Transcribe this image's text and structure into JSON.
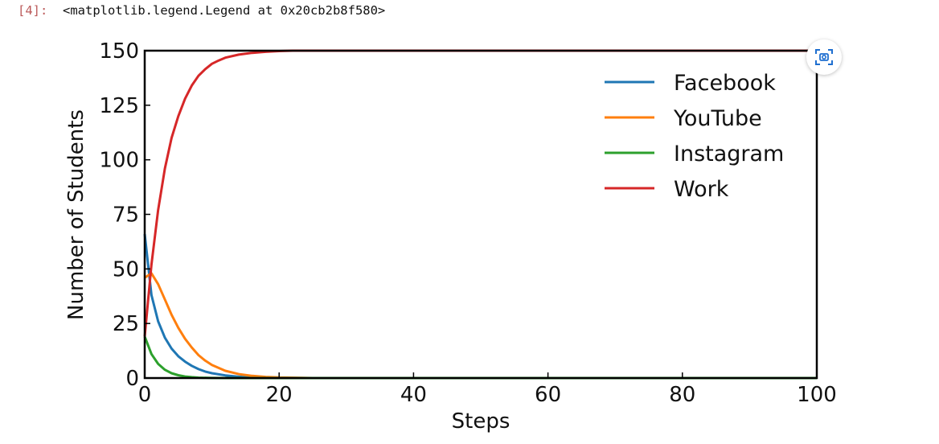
{
  "cell": {
    "prompt": "[4]:",
    "output_text": "<matplotlib.legend.Legend at 0x20cb2b8f580>"
  },
  "toolbar": {
    "camera_icon": "camera-scan-icon"
  },
  "colors": {
    "facebook": "#1f77b4",
    "youtube": "#ff7f0e",
    "instagram": "#2ca02c",
    "work": "#d62728",
    "accent": "#1f6fd0"
  },
  "chart_data": {
    "type": "line",
    "xlabel": "Steps",
    "ylabel": "Number of Students",
    "xlim": [
      0,
      100
    ],
    "ylim": [
      0,
      150
    ],
    "xticks": [
      "0",
      "20",
      "40",
      "60",
      "80",
      "100"
    ],
    "yticks": [
      "0",
      "25",
      "50",
      "75",
      "100",
      "125",
      "150"
    ],
    "grid": false,
    "legend_position": "top-right",
    "series": [
      {
        "name": "Facebook",
        "color": "#1f77b4",
        "x": [
          0,
          1,
          2,
          3,
          4,
          5,
          6,
          7,
          8,
          9,
          10,
          12,
          14,
          16,
          18,
          20,
          25,
          30,
          40,
          60,
          80,
          100
        ],
        "y": [
          66,
          38,
          26,
          18.5,
          13.5,
          10,
          7.5,
          5.6,
          4.1,
          3,
          2.2,
          1.2,
          0.6,
          0.3,
          0.15,
          0.05,
          0,
          0,
          0,
          0,
          0,
          0
        ]
      },
      {
        "name": "YouTube",
        "color": "#ff7f0e",
        "x": [
          0,
          1,
          2,
          3,
          4,
          5,
          6,
          7,
          8,
          9,
          10,
          12,
          14,
          16,
          18,
          20,
          25,
          30,
          40,
          60,
          80,
          100
        ],
        "y": [
          46,
          48,
          43,
          36,
          29,
          23,
          18,
          14,
          10.5,
          8,
          6,
          3.3,
          1.8,
          1,
          0.5,
          0.25,
          0,
          0,
          0,
          0,
          0,
          0
        ]
      },
      {
        "name": "Instagram",
        "color": "#2ca02c",
        "x": [
          0,
          1,
          2,
          3,
          4,
          5,
          6,
          7,
          8,
          10,
          12,
          15,
          20,
          30,
          40,
          60,
          80,
          100
        ],
        "y": [
          19,
          11,
          6.5,
          3.8,
          2.2,
          1.3,
          0.7,
          0.4,
          0.2,
          0.05,
          0,
          0,
          0,
          0,
          0,
          0,
          0,
          0
        ]
      },
      {
        "name": "Work",
        "color": "#d62728",
        "x": [
          0,
          1,
          2,
          3,
          4,
          5,
          6,
          7,
          8,
          9,
          10,
          11,
          12,
          14,
          16,
          18,
          20,
          22,
          25,
          30,
          40,
          60,
          80,
          100
        ],
        "y": [
          19,
          52,
          77,
          96,
          110,
          120,
          128,
          134,
          138.5,
          141.5,
          144,
          145.5,
          146.8,
          148.2,
          149,
          149.5,
          149.8,
          150,
          150,
          150,
          150,
          150,
          150,
          150
        ]
      }
    ]
  }
}
